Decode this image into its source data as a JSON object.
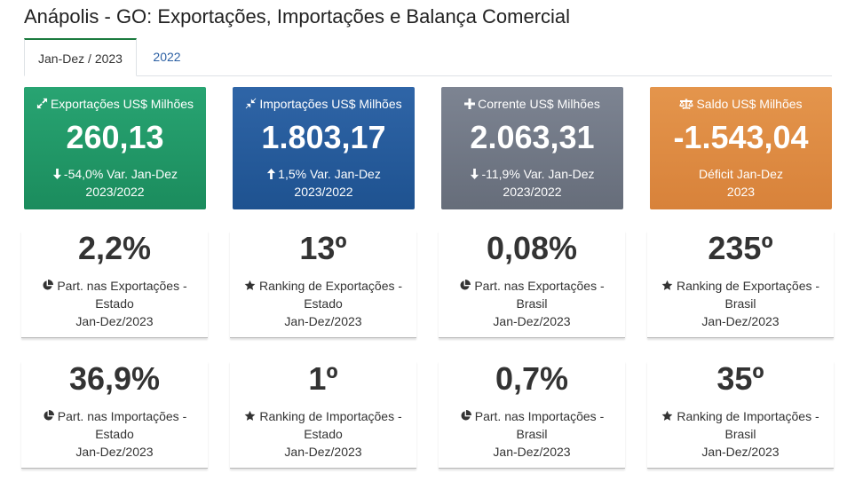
{
  "page": {
    "title": "Anápolis - GO: Exportações, Importações e Balança Comercial"
  },
  "tabs": [
    {
      "label": "Jan-Dez / 2023",
      "active": true
    },
    {
      "label": "2022",
      "active": false
    }
  ],
  "kpis": [
    {
      "icon": "expand-arrows-icon",
      "title": "Exportações US$ Milhões",
      "value": "260,13",
      "var_icon": "arrow-down-icon",
      "var_line1": "-54,0% Var. Jan-Dez",
      "var_line2": "2023/2022",
      "color": "#1f9566"
    },
    {
      "icon": "compress-arrows-icon",
      "title": "Importações US$ Milhões",
      "value": "1.803,17",
      "var_icon": "arrow-up-icon",
      "var_line1": "1,5% Var. Jan-Dez",
      "var_line2": "2023/2022",
      "color": "#235a9a"
    },
    {
      "icon": "plus-icon",
      "title": "Corrente US$ Milhões",
      "value": "2.063,31",
      "var_icon": "arrow-down-icon",
      "var_line1": "-11,9% Var. Jan-Dez",
      "var_line2": "2023/2022",
      "color": "#707786"
    },
    {
      "icon": "balance-scale-icon",
      "title": "Saldo US$ Milhões",
      "value": "-1.543,04",
      "var_icon": "",
      "var_line1": "Déficit Jan-Dez",
      "var_line2": "2023",
      "color": "#dd8a42"
    }
  ],
  "stats_row1": [
    {
      "value": "2,2%",
      "icon": "pie-chart-icon",
      "line1": "Part. nas Exportações -",
      "line2": "Estado",
      "line3": "Jan-Dez/2023"
    },
    {
      "value": "13º",
      "icon": "star-icon",
      "line1": "Ranking de Exportações -",
      "line2": "Estado",
      "line3": "Jan-Dez/2023"
    },
    {
      "value": "0,08%",
      "icon": "pie-chart-icon",
      "line1": "Part. nas Exportações -",
      "line2": "Brasil",
      "line3": "Jan-Dez/2023"
    },
    {
      "value": "235º",
      "icon": "star-icon",
      "line1": "Ranking de Exportações -",
      "line2": "Brasil",
      "line3": "Jan-Dez/2023"
    }
  ],
  "stats_row2": [
    {
      "value": "36,9%",
      "icon": "pie-chart-icon",
      "line1": "Part. nas Importações -",
      "line2": "Estado",
      "line3": "Jan-Dez/2023"
    },
    {
      "value": "1º",
      "icon": "star-icon",
      "line1": "Ranking de Importações -",
      "line2": "Estado",
      "line3": "Jan-Dez/2023"
    },
    {
      "value": "0,7%",
      "icon": "pie-chart-icon",
      "line1": "Part. nas Importações -",
      "line2": "Brasil",
      "line3": "Jan-Dez/2023"
    },
    {
      "value": "35º",
      "icon": "star-icon",
      "line1": "Ranking de Importações -",
      "line2": "Brasil",
      "line3": "Jan-Dez/2023"
    }
  ]
}
